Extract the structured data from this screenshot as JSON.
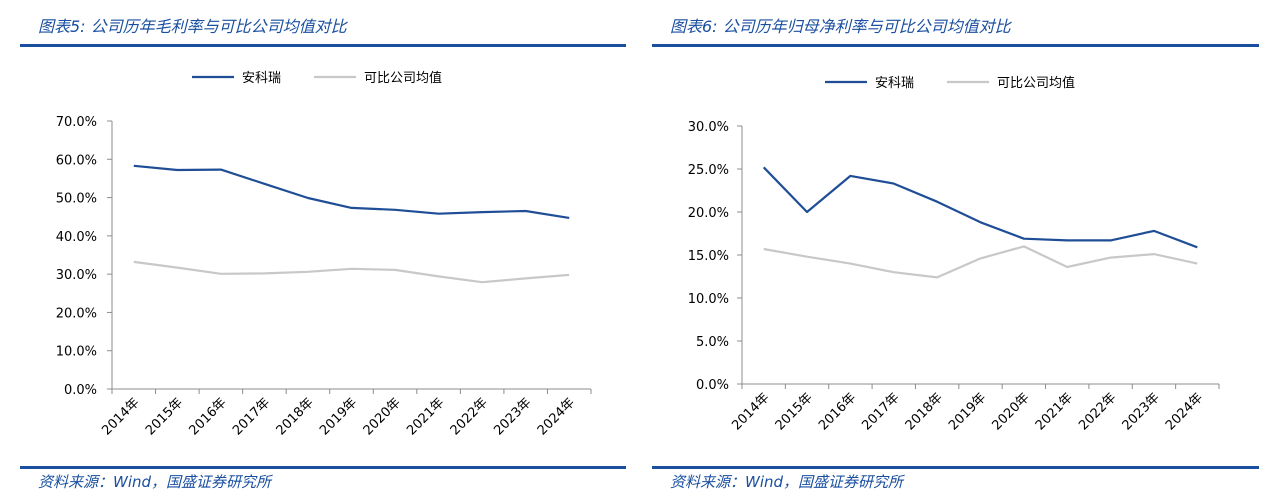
{
  "charts": [
    {
      "figure_title": "图表5:  公司历年毛利率与可比公司均值对比",
      "source": "资料来源：Wind，国盛证券研究所",
      "colors": {
        "primary": "#1f4e97",
        "secondary": "#c8c8c8",
        "accent": "#1a4fa0"
      }
    },
    {
      "figure_title": "图表6:  公司历年归母净利率与可比公司均值对比",
      "source": "资料来源：Wind，国盛证券研究所",
      "colors": {
        "primary": "#1f4e97",
        "secondary": "#c8c8c8",
        "accent": "#1a4fa0"
      }
    }
  ],
  "chart_data": [
    {
      "type": "line",
      "title": "",
      "xlabel": "",
      "ylabel": "",
      "categories": [
        "2014年",
        "2015年",
        "2016年",
        "2017年",
        "2018年",
        "2019年",
        "2020年",
        "2021年",
        "2022年",
        "2023年",
        "2024年"
      ],
      "ylim": [
        0,
        70
      ],
      "yticks": [
        "0.0%",
        "10.0%",
        "20.0%",
        "30.0%",
        "40.0%",
        "50.0%",
        "60.0%",
        "70.0%"
      ],
      "grid": false,
      "legend": "top-center",
      "series": [
        {
          "name": "安科瑞",
          "values": [
            58.3,
            57.2,
            57.3,
            53.6,
            49.9,
            47.3,
            46.8,
            45.8,
            46.2,
            46.5,
            44.7
          ]
        },
        {
          "name": "可比公司均值",
          "values": [
            33.2,
            31.7,
            30.1,
            30.2,
            30.6,
            31.4,
            31.1,
            29.4,
            27.9,
            28.9,
            29.8
          ]
        }
      ]
    },
    {
      "type": "line",
      "title": "",
      "xlabel": "",
      "ylabel": "",
      "categories": [
        "2014年",
        "2015年",
        "2016年",
        "2017年",
        "2018年",
        "2019年",
        "2020年",
        "2021年",
        "2022年",
        "2023年",
        "2024年"
      ],
      "ylim": [
        0,
        30
      ],
      "yticks": [
        "0.0%",
        "5.0%",
        "10.0%",
        "15.0%",
        "20.0%",
        "25.0%",
        "30.0%"
      ],
      "grid": false,
      "legend": "top-center",
      "series": [
        {
          "name": "安科瑞",
          "values": [
            25.2,
            20.0,
            24.2,
            23.3,
            21.2,
            18.8,
            16.9,
            16.7,
            16.7,
            17.8,
            15.9
          ]
        },
        {
          "name": "可比公司均值",
          "values": [
            15.7,
            14.8,
            14.0,
            13.0,
            12.4,
            14.6,
            16.0,
            13.6,
            14.7,
            15.1,
            14.0
          ]
        }
      ]
    }
  ]
}
